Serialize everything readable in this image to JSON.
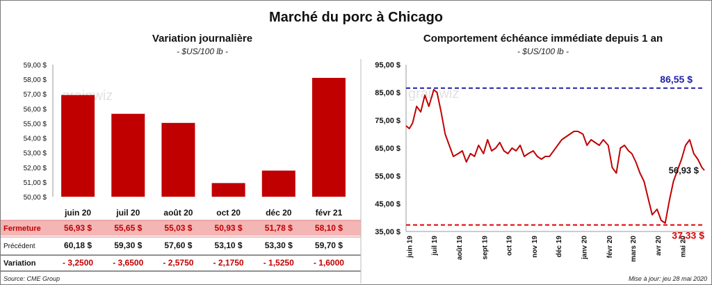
{
  "title": "Marché du porc à Chicago",
  "source": "Source: CME Group",
  "updated": "Mise à jour: jeu 28 mai 2020",
  "watermark": "grainwiz",
  "colors": {
    "bar": "#c00000",
    "line": "#c00000",
    "blue_ref": "#1f1fa8",
    "red_ref": "#e00000",
    "row_highlight": "#f4b5b5"
  },
  "chart_data": [
    {
      "type": "bar",
      "title": "Variation journalière",
      "subtitle": "- $US/100 lb -",
      "categories": [
        "juin 20",
        "juil 20",
        "août 20",
        "oct 20",
        "déc 20",
        "févr 21"
      ],
      "values": [
        56.93,
        55.65,
        55.03,
        50.93,
        51.78,
        58.1
      ],
      "ylim": [
        50,
        59
      ],
      "yticks": [
        "50,00 $",
        "51,00 $",
        "52,00 $",
        "53,00 $",
        "54,00 $",
        "55,00 $",
        "56,00 $",
        "57,00 $",
        "58,00 $",
        "59,00 $"
      ],
      "grid": false
    },
    {
      "type": "line",
      "title": "Comportement échéance immédiate depuis 1 an",
      "subtitle": "- $US/100 lb -",
      "ylim": [
        35,
        95
      ],
      "yticks": [
        "35,00 $",
        "45,00 $",
        "55,00 $",
        "65,00 $",
        "75,00 $",
        "85,00 $",
        "95,00 $"
      ],
      "xticks": [
        "juin 19",
        "juil 19",
        "août 19",
        "sept 19",
        "oct 19",
        "nov 19",
        "déc 19",
        "janv 20",
        "févr 20",
        "mars 20",
        "avr 20",
        "mai 20"
      ],
      "x": [
        "2019-05-28",
        "2019-06-01",
        "2019-06-05",
        "2019-06-10",
        "2019-06-15",
        "2019-06-20",
        "2019-06-25",
        "2019-07-01",
        "2019-07-05",
        "2019-07-10",
        "2019-07-15",
        "2019-07-20",
        "2019-07-25",
        "2019-07-31",
        "2019-08-05",
        "2019-08-10",
        "2019-08-15",
        "2019-08-20",
        "2019-08-25",
        "2019-08-31",
        "2019-09-05",
        "2019-09-10",
        "2019-09-15",
        "2019-09-20",
        "2019-09-25",
        "2019-09-30",
        "2019-10-05",
        "2019-10-10",
        "2019-10-15",
        "2019-10-20",
        "2019-10-25",
        "2019-10-31",
        "2019-11-05",
        "2019-11-10",
        "2019-11-15",
        "2019-11-20",
        "2019-11-25",
        "2019-11-30",
        "2019-12-05",
        "2019-12-10",
        "2019-12-15",
        "2019-12-20",
        "2019-12-25",
        "2019-12-31",
        "2020-01-05",
        "2020-01-10",
        "2020-01-15",
        "2020-01-20",
        "2020-01-25",
        "2020-01-31",
        "2020-02-05",
        "2020-02-10",
        "2020-02-15",
        "2020-02-20",
        "2020-02-25",
        "2020-02-29",
        "2020-03-05",
        "2020-03-10",
        "2020-03-15",
        "2020-03-20",
        "2020-03-25",
        "2020-03-31",
        "2020-04-05",
        "2020-04-10",
        "2020-04-15",
        "2020-04-20",
        "2020-04-25",
        "2020-04-30",
        "2020-05-05",
        "2020-05-10",
        "2020-05-15",
        "2020-05-20",
        "2020-05-25",
        "2020-05-28"
      ],
      "series": [
        {
          "values": [
            73,
            72,
            74,
            80,
            78,
            84,
            80,
            86,
            85,
            78,
            70,
            66,
            62,
            63,
            64,
            60,
            63,
            62,
            66,
            63,
            68,
            64,
            65,
            67,
            64,
            63,
            65,
            64,
            66,
            62,
            63,
            64,
            62,
            61,
            62,
            62,
            64,
            66,
            68,
            69,
            70,
            71,
            71,
            70,
            66,
            68,
            67,
            66,
            68,
            66,
            58,
            56,
            65,
            66,
            64,
            63,
            60,
            56,
            53,
            47,
            41,
            43,
            39,
            38,
            46,
            53,
            57,
            61,
            66,
            68,
            63,
            61,
            58,
            57
          ]
        }
      ],
      "ref_lines": [
        {
          "label": "86,55 $",
          "value": 86.55,
          "color": "blue"
        },
        {
          "label": "37,33 $",
          "value": 37.33,
          "color": "red"
        }
      ],
      "last_label": "56,93 $",
      "grid": false
    }
  ],
  "table": {
    "rows": [
      {
        "label": "Fermeture",
        "values": [
          "56,93  $",
          "55,65  $",
          "55,03  $",
          "50,93  $",
          "51,78  $",
          "58,10  $"
        ]
      },
      {
        "label": "Précédent",
        "values": [
          "60,18  $",
          "59,30  $",
          "57,60  $",
          "53,10  $",
          "53,30  $",
          "59,70  $"
        ]
      },
      {
        "label": "Variation",
        "values": [
          "- 3,2500",
          "- 3,6500",
          "- 2,5750",
          "- 2,1750",
          "- 1,5250",
          "- 1,6000"
        ]
      }
    ]
  }
}
